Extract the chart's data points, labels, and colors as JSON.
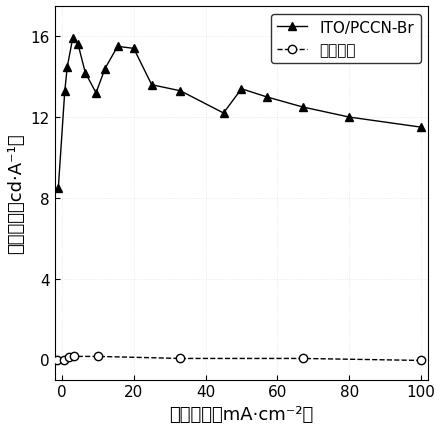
{
  "title": "",
  "xlabel": "电流密度（mA·cm⁻²）",
  "ylabel": "电流效率（cd·A⁻¹）",
  "xlim": [
    -2,
    102
  ],
  "ylim": [
    -1,
    17.5
  ],
  "xticks": [
    0,
    20,
    40,
    60,
    80,
    100
  ],
  "yticks": [
    0,
    4,
    8,
    12,
    16
  ],
  "series1_label": "ITO/PCCN-Br",
  "series2_label": "对照器件",
  "series1_x": [
    -1.0,
    0.8,
    1.5,
    3.0,
    4.5,
    6.5,
    9.5,
    12.0,
    15.5,
    20.0,
    25.0,
    33.0,
    45.0,
    50.0,
    57.0,
    67.0,
    80.0,
    100.0
  ],
  "series1_y": [
    8.5,
    13.3,
    14.5,
    15.9,
    15.6,
    14.2,
    13.2,
    14.4,
    15.5,
    15.4,
    13.6,
    13.3,
    12.2,
    13.4,
    13.0,
    12.5,
    12.0,
    11.5
  ],
  "series2_x": [
    -1.5,
    0.5,
    2.0,
    3.5,
    10.0,
    33.0,
    67.0,
    100.0
  ],
  "series2_y": [
    -0.05,
    -0.05,
    0.1,
    0.15,
    0.15,
    0.05,
    0.05,
    -0.05
  ],
  "line1_color": "#000000",
  "line2_color": "#000000",
  "line1_style": "-",
  "line2_style": "--",
  "marker1": "^",
  "marker2": "o",
  "marker1_size": 6,
  "marker2_size": 6,
  "legend_loc": "upper right",
  "font_size": 11,
  "label_font_size": 13,
  "tick_font_size": 11,
  "bg_dot_color": "#cccccc",
  "bg_dot_alpha": 0.5
}
